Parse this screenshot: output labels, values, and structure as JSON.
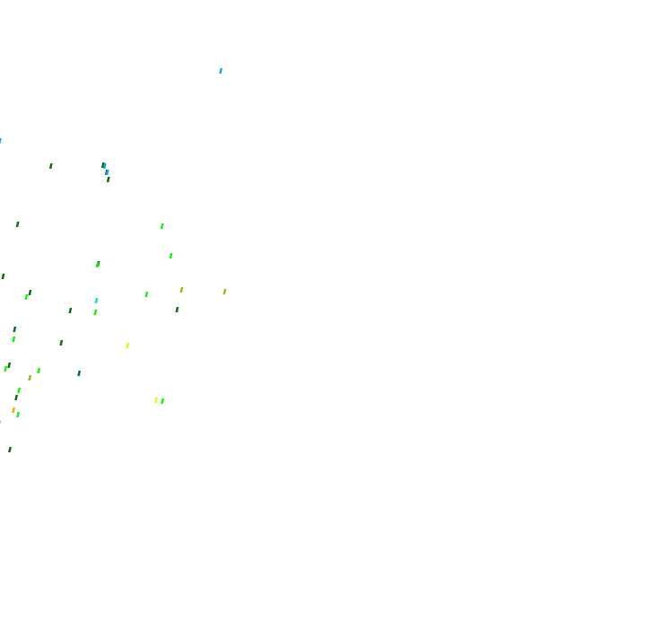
{
  "palette": {
    "background": "#ffffff",
    "dark_green": "#0a6b14",
    "bright_green": "#1aee10",
    "light_blue": "#10a8f0",
    "teal": "#20e0b0",
    "olive": "#8cbf20",
    "yellow": "#f0f010",
    "orange": "#f0a010"
  }
}
